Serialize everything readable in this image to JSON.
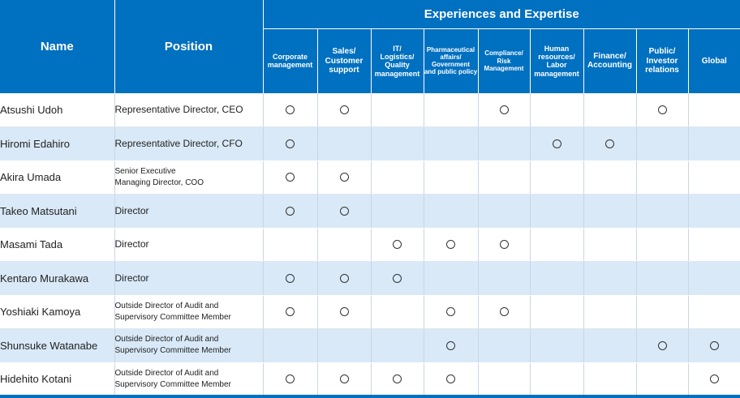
{
  "header": {
    "name": "Name",
    "position": "Position",
    "group": "Experiences and Expertise",
    "categories": [
      [
        "Corporate",
        "management"
      ],
      [
        "Sales/",
        "Customer",
        "support"
      ],
      [
        "IT/",
        "Logistics/",
        "Quality",
        "management"
      ],
      [
        "Pharmaceutical",
        "affairs/",
        "Government",
        "and public policy"
      ],
      [
        "Compliance/",
        "Risk",
        "Management"
      ],
      [
        "Human",
        "resources/",
        "Labor",
        "management"
      ],
      [
        "Finance/",
        "Accounting"
      ],
      [
        "Public/",
        "Investor",
        "relations"
      ],
      [
        "Global"
      ]
    ]
  },
  "rows": [
    {
      "name": "Atsushi Udoh",
      "position": [
        "Representative Director, CEO"
      ],
      "marks": [
        1,
        1,
        0,
        0,
        1,
        0,
        0,
        1,
        0
      ]
    },
    {
      "name": "Hiromi Edahiro",
      "position": [
        "Representative Director, CFO"
      ],
      "marks": [
        1,
        0,
        0,
        0,
        0,
        1,
        1,
        0,
        0
      ]
    },
    {
      "name": "Akira Umada",
      "position": [
        "Senior Executive",
        "Managing Director, COO"
      ],
      "marks": [
        1,
        1,
        0,
        0,
        0,
        0,
        0,
        0,
        0
      ]
    },
    {
      "name": "Takeo Matsutani",
      "position": [
        "Director"
      ],
      "marks": [
        1,
        1,
        0,
        0,
        0,
        0,
        0,
        0,
        0
      ]
    },
    {
      "name": "Masami Tada",
      "position": [
        "Director"
      ],
      "marks": [
        0,
        0,
        1,
        1,
        1,
        0,
        0,
        0,
        0
      ]
    },
    {
      "name": "Kentaro Murakawa",
      "position": [
        "Director"
      ],
      "marks": [
        1,
        1,
        1,
        0,
        0,
        0,
        0,
        0,
        0
      ]
    },
    {
      "name": "Yoshiaki Kamoya",
      "position": [
        "Outside Director of Audit and",
        "Supervisory Committee Member"
      ],
      "marks": [
        1,
        1,
        0,
        1,
        1,
        0,
        0,
        0,
        0
      ]
    },
    {
      "name": "Shunsuke Watanabe",
      "position": [
        "Outside Director of Audit and",
        "Supervisory Committee Member"
      ],
      "marks": [
        0,
        0,
        0,
        1,
        0,
        0,
        0,
        1,
        1
      ]
    },
    {
      "name": "Hidehito Kotani",
      "position": [
        "Outside Director of Audit and",
        "Supervisory Committee Member"
      ],
      "marks": [
        1,
        1,
        1,
        1,
        0,
        0,
        0,
        0,
        1
      ]
    }
  ]
}
